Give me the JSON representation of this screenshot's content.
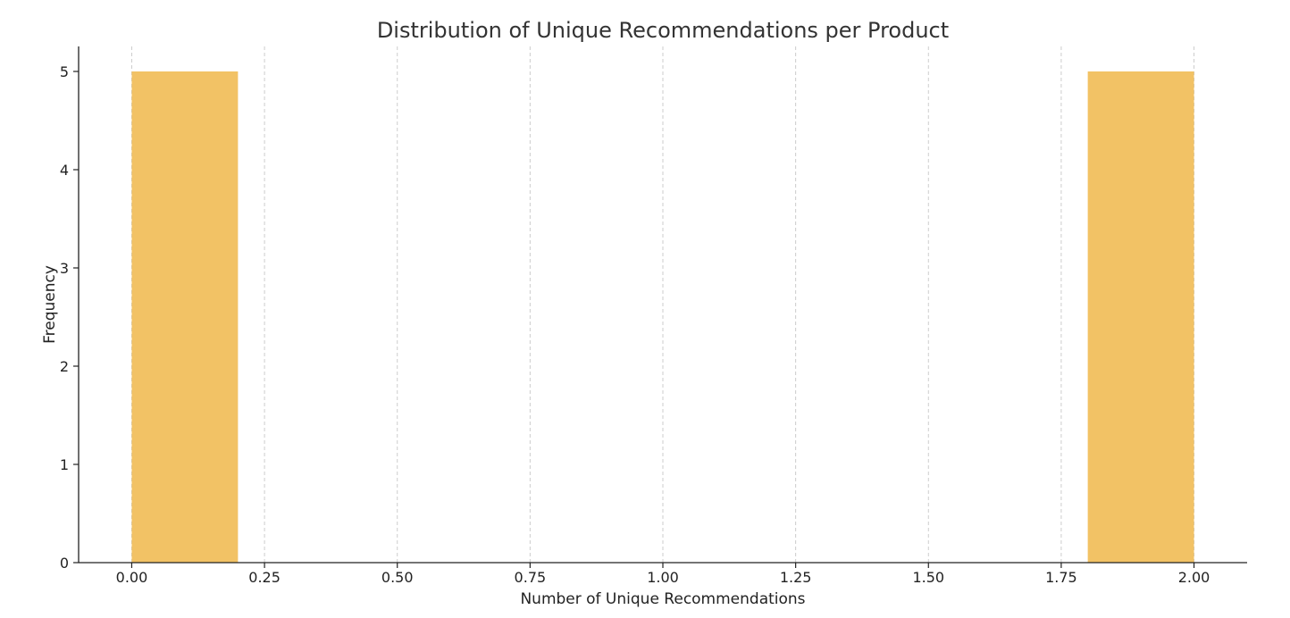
{
  "chart_data": {
    "type": "bar",
    "title": "Distribution of Unique Recommendations per Product",
    "xlabel": "Number of Unique Recommendations",
    "ylabel": "Frequency",
    "xlim": [
      -0.1,
      2.1
    ],
    "ylim": [
      0,
      5.25
    ],
    "x_ticks": [
      0,
      0.25,
      0.5,
      0.75,
      1.0,
      1.25,
      1.5,
      1.75,
      2.0
    ],
    "x_tick_labels": [
      "0.00",
      "0.25",
      "0.50",
      "0.75",
      "1.00",
      "1.25",
      "1.50",
      "1.75",
      "2.00"
    ],
    "y_ticks": [
      0,
      1,
      2,
      3,
      4,
      5
    ],
    "y_tick_labels": [
      "0",
      "1",
      "2",
      "3",
      "4",
      "5"
    ],
    "bins": [
      {
        "x0": 0.0,
        "x1": 0.2,
        "value": 5
      },
      {
        "x0": 0.2,
        "x1": 0.4,
        "value": 0
      },
      {
        "x0": 0.4,
        "x1": 0.6,
        "value": 0
      },
      {
        "x0": 0.6,
        "x1": 0.8,
        "value": 0
      },
      {
        "x0": 0.8,
        "x1": 1.0,
        "value": 0
      },
      {
        "x0": 1.0,
        "x1": 1.2,
        "value": 0
      },
      {
        "x0": 1.2,
        "x1": 1.4,
        "value": 0
      },
      {
        "x0": 1.4,
        "x1": 1.6,
        "value": 0
      },
      {
        "x0": 1.6,
        "x1": 1.8,
        "value": 0
      },
      {
        "x0": 1.8,
        "x1": 2.0,
        "value": 5
      }
    ],
    "bar_color": "#F2C265",
    "grid": {
      "x": true,
      "y": false
    },
    "legend": "none"
  }
}
